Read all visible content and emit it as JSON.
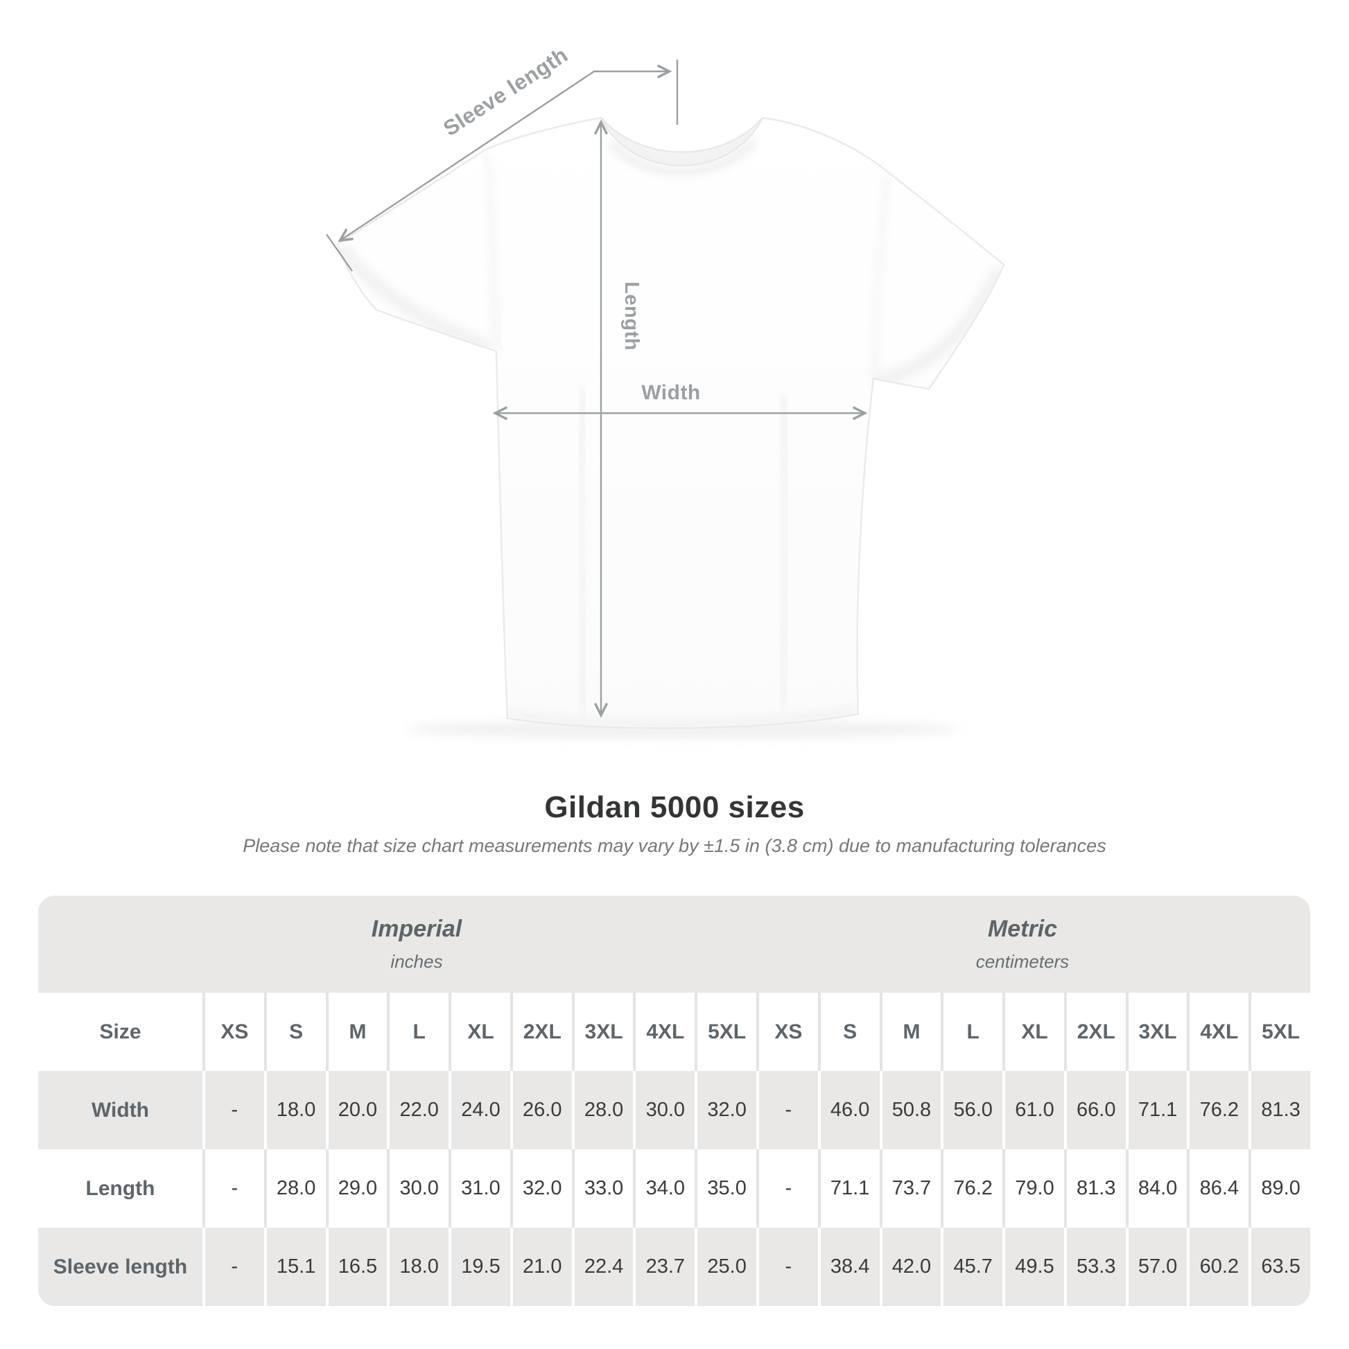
{
  "title": "Gildan 5000 sizes",
  "subtitle": "Please note that size chart measurements may vary by ±1.5 in (3.8 cm) due to manufacturing tolerances",
  "diagram": {
    "sleeve_length_label": "Sleeve length",
    "length_label": "Length",
    "width_label": "Width"
  },
  "table": {
    "size_label": "Size",
    "groups": [
      {
        "name": "Imperial",
        "unit": "inches"
      },
      {
        "name": "Metric",
        "unit": "centimeters"
      }
    ],
    "sizes": [
      "XS",
      "S",
      "M",
      "L",
      "XL",
      "2XL",
      "3XL",
      "4XL",
      "5XL"
    ],
    "rows": [
      {
        "label": "Width",
        "imperial": [
          "-",
          "18.0",
          "20.0",
          "22.0",
          "24.0",
          "26.0",
          "28.0",
          "30.0",
          "32.0"
        ],
        "metric": [
          "-",
          "46.0",
          "50.8",
          "56.0",
          "61.0",
          "66.0",
          "71.1",
          "76.2",
          "81.3"
        ]
      },
      {
        "label": "Length",
        "imperial": [
          "-",
          "28.0",
          "29.0",
          "30.0",
          "31.0",
          "32.0",
          "33.0",
          "34.0",
          "35.0"
        ],
        "metric": [
          "-",
          "71.1",
          "73.7",
          "76.2",
          "79.0",
          "81.3",
          "84.0",
          "86.4",
          "89.0"
        ]
      },
      {
        "label": "Sleeve length",
        "imperial": [
          "-",
          "15.1",
          "16.5",
          "18.0",
          "19.5",
          "21.0",
          "22.4",
          "23.7",
          "25.0"
        ],
        "metric": [
          "-",
          "38.4",
          "42.0",
          "45.7",
          "49.5",
          "53.3",
          "57.0",
          "60.2",
          "63.5"
        ]
      }
    ]
  },
  "chart_data": {
    "type": "table",
    "title": "Gildan 5000 sizes",
    "units": [
      "inches",
      "centimeters"
    ],
    "sizes": [
      "XS",
      "S",
      "M",
      "L",
      "XL",
      "2XL",
      "3XL",
      "4XL",
      "5XL"
    ],
    "measurements": {
      "width_in": [
        null,
        18.0,
        20.0,
        22.0,
        24.0,
        26.0,
        28.0,
        30.0,
        32.0
      ],
      "length_in": [
        null,
        28.0,
        29.0,
        30.0,
        31.0,
        32.0,
        33.0,
        34.0,
        35.0
      ],
      "sleeve_in": [
        null,
        15.1,
        16.5,
        18.0,
        19.5,
        21.0,
        22.4,
        23.7,
        25.0
      ],
      "width_cm": [
        null,
        46.0,
        50.8,
        56.0,
        61.0,
        66.0,
        71.1,
        76.2,
        81.3
      ],
      "length_cm": [
        null,
        71.1,
        73.7,
        76.2,
        79.0,
        81.3,
        84.0,
        86.4,
        89.0
      ],
      "sleeve_cm": [
        null,
        38.4,
        42.0,
        45.7,
        49.5,
        53.3,
        57.0,
        60.2,
        63.5
      ]
    }
  },
  "colors": {
    "table_bg": "#e9e8e7",
    "separator_on_white": "#e4e4e3",
    "label_text": "#5e656a",
    "value_text": "#3b3b3b",
    "annotation": "#9aa0a3",
    "title_text": "#323436"
  }
}
